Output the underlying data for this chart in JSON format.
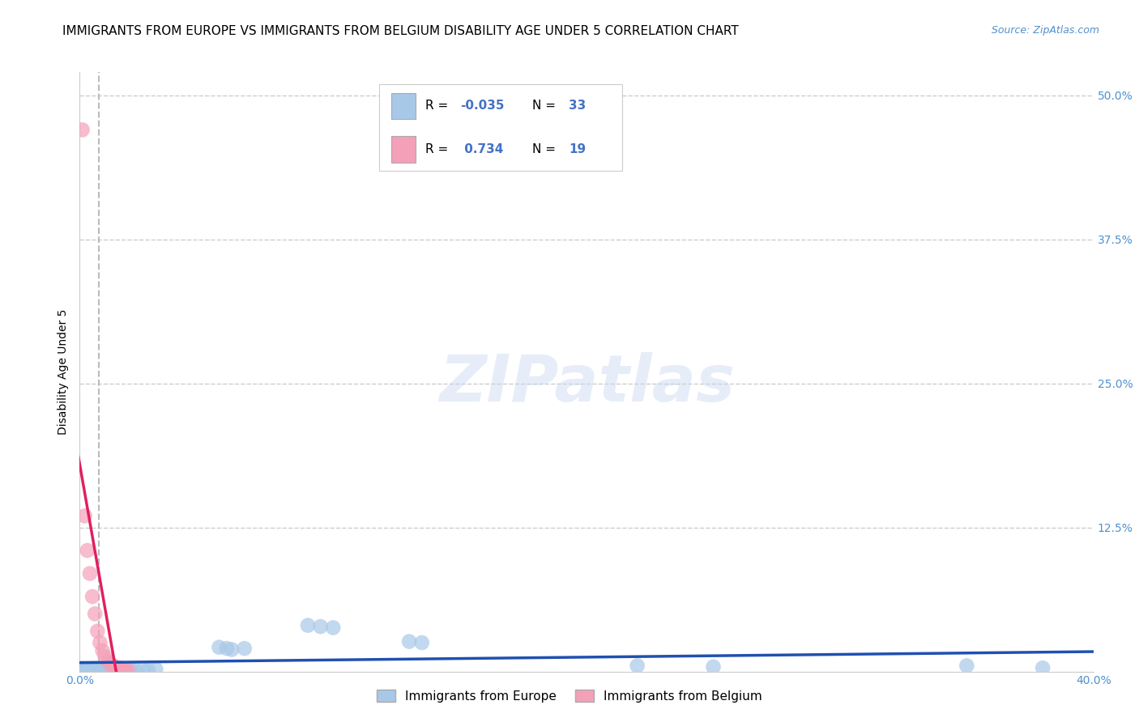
{
  "title": "IMMIGRANTS FROM EUROPE VS IMMIGRANTS FROM BELGIUM DISABILITY AGE UNDER 5 CORRELATION CHART",
  "source": "Source: ZipAtlas.com",
  "ylabel": "Disability Age Under 5",
  "xlim": [
    0.0,
    0.4
  ],
  "ylim": [
    0.0,
    0.52
  ],
  "xticks": [
    0.0,
    0.1,
    0.2,
    0.3,
    0.4
  ],
  "xticklabels": [
    "0.0%",
    "",
    "",
    "",
    "40.0%"
  ],
  "yticks": [
    0.0,
    0.125,
    0.25,
    0.375,
    0.5
  ],
  "yticklabels": [
    "",
    "12.5%",
    "25.0%",
    "37.5%",
    "50.0%"
  ],
  "blue_R": -0.035,
  "blue_N": 33,
  "pink_R": 0.734,
  "pink_N": 19,
  "blue_color": "#a8c8e8",
  "pink_color": "#f4a0b8",
  "blue_line_color": "#2050b0",
  "pink_line_color": "#e02060",
  "blue_scatter_x": [
    0.001,
    0.002,
    0.003,
    0.004,
    0.005,
    0.006,
    0.007,
    0.008,
    0.009,
    0.01,
    0.011,
    0.012,
    0.013,
    0.015,
    0.017,
    0.02,
    0.022,
    0.025,
    0.027,
    0.03,
    0.055,
    0.058,
    0.06,
    0.065,
    0.09,
    0.095,
    0.1,
    0.13,
    0.135,
    0.22,
    0.25,
    0.35,
    0.38
  ],
  "blue_scatter_y": [
    0.003,
    0.002,
    0.003,
    0.002,
    0.003,
    0.002,
    0.003,
    0.002,
    0.001,
    0.002,
    0.003,
    0.002,
    0.001,
    0.002,
    0.001,
    0.002,
    0.001,
    0.002,
    0.001,
    0.002,
    0.021,
    0.02,
    0.019,
    0.02,
    0.04,
    0.039,
    0.038,
    0.026,
    0.025,
    0.005,
    0.004,
    0.005,
    0.003
  ],
  "pink_scatter_x": [
    0.001,
    0.002,
    0.003,
    0.004,
    0.005,
    0.006,
    0.007,
    0.008,
    0.009,
    0.01,
    0.011,
    0.012,
    0.013,
    0.014,
    0.015,
    0.016,
    0.017,
    0.018,
    0.019
  ],
  "pink_scatter_y": [
    0.47,
    0.135,
    0.105,
    0.085,
    0.065,
    0.05,
    0.035,
    0.025,
    0.018,
    0.013,
    0.009,
    0.007,
    0.005,
    0.004,
    0.003,
    0.003,
    0.002,
    0.002,
    0.001
  ],
  "vline_x": 0.0075,
  "watermark_text": "ZIPatlas",
  "background_color": "#ffffff",
  "grid_color": "#cccccc",
  "title_fontsize": 11,
  "axis_label_fontsize": 10,
  "tick_fontsize": 10,
  "legend_fontsize": 12,
  "scatter_size": 180,
  "scatter_alpha": 0.7
}
